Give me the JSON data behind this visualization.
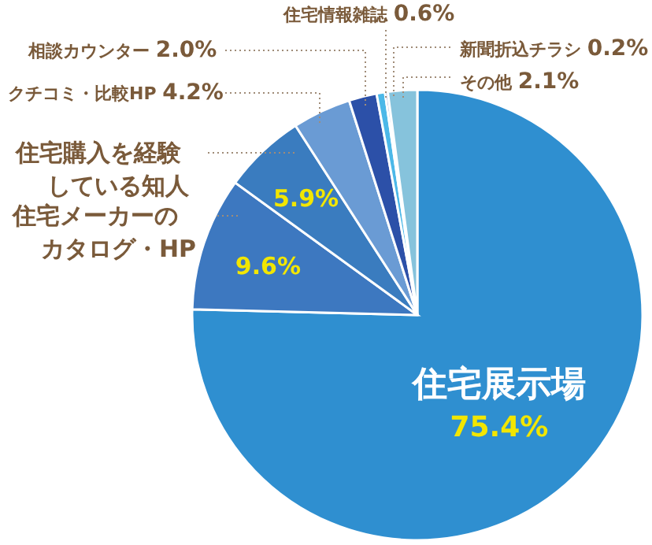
{
  "chart_data": {
    "type": "pie",
    "categories": [
      "住宅展示場",
      "住宅メーカーのカタログ・HP",
      "住宅購入を経験している知人",
      "クチコミ・比較HP",
      "相談カウンター",
      "住宅情報雑誌",
      "新聞折込チラシ",
      "その他"
    ],
    "values": [
      75.4,
      9.6,
      5.9,
      4.2,
      2.0,
      0.6,
      0.2,
      2.1
    ],
    "colors": [
      "#2f8fd0",
      "#3d78c0",
      "#3a7cbf",
      "#6a9bd4",
      "#2c50a8",
      "#4cb8e8",
      "#7d86c8",
      "#86c3dc"
    ],
    "value_labels": [
      "75.4%",
      "9.6%",
      "5.9%",
      "4.2%",
      "2.0%",
      "0.6%",
      "0.2%",
      "2.1%"
    ]
  }
}
